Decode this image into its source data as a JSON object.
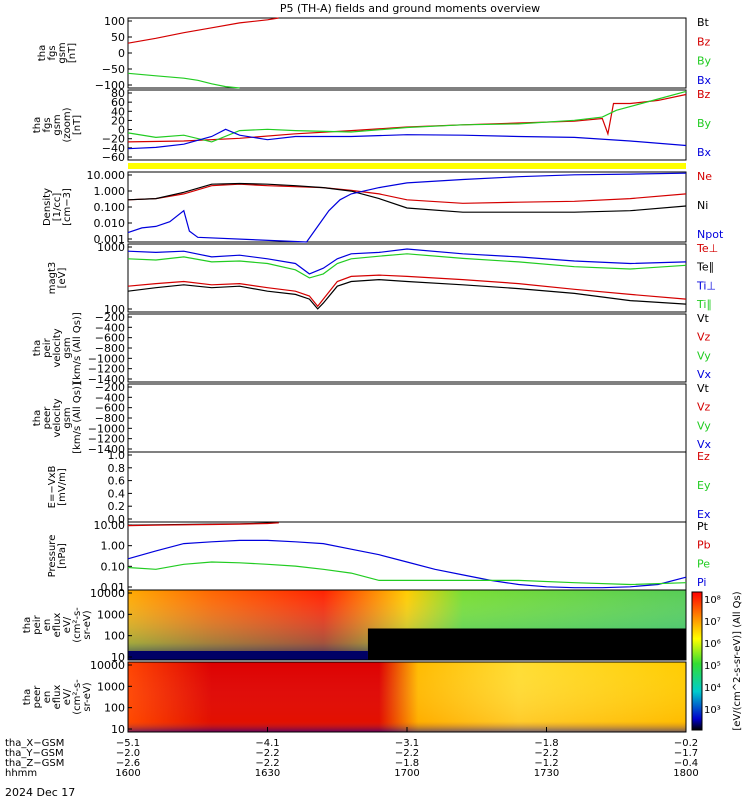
{
  "title": "P5 (TH-A) fields and ground moments overview",
  "date_label": "2024 Dec 17",
  "colors": {
    "black": "#000000",
    "red": "#d40000",
    "green": "#22cc22",
    "blue": "#0000dd",
    "yellow": "#ffff00"
  },
  "chart_data": [
    {
      "type": "line",
      "id": "fgs_gsm",
      "ylabel": [
        "tha",
        "fgs",
        "gsm",
        "[nT]"
      ],
      "ylim": [
        -100,
        100
      ],
      "ticks": [
        "100",
        "50",
        "0",
        "−50",
        "−100"
      ],
      "legend": [
        {
          "label": "Bt",
          "color": "black"
        },
        {
          "label": "Bz",
          "color": "red"
        },
        {
          "label": "By",
          "color": "green"
        },
        {
          "label": "Bx",
          "color": "blue"
        }
      ],
      "series": [
        {
          "name": "Bz",
          "color": "red",
          "x": [
            1600,
            1610,
            1620,
            1630,
            1640,
            1650,
            1654
          ],
          "y": [
            28,
            42,
            58,
            72,
            86,
            95,
            100
          ]
        },
        {
          "name": "By",
          "color": "green",
          "x": [
            1600,
            1610,
            1620,
            1625,
            1630,
            1635,
            1640
          ],
          "y": [
            -58,
            -65,
            -72,
            -78,
            -88,
            -96,
            -100
          ]
        }
      ]
    },
    {
      "type": "line",
      "id": "fgs_gse",
      "ylabel": [
        "tha",
        "fgs",
        "gsm",
        "(zoom)",
        "[nT]"
      ],
      "ylim": [
        -70,
        85
      ],
      "ticks": [
        "80",
        "60",
        "40",
        "20",
        "0",
        "−20",
        "−40",
        "−60"
      ],
      "legend": [
        {
          "label": "Bz",
          "color": "red"
        },
        {
          "label": "By",
          "color": "green"
        },
        {
          "label": "Bx",
          "color": "blue"
        }
      ],
      "series": [
        {
          "name": "Bz",
          "color": "red",
          "x": [
            1600,
            1620,
            1640,
            1660,
            1680,
            1700,
            1720,
            1740,
            1760,
            1770,
            1772,
            1774,
            1780,
            1790,
            1800
          ],
          "y": [
            -30,
            -28,
            -22,
            -12,
            -5,
            3,
            8,
            12,
            16,
            22,
            -12,
            55,
            55,
            62,
            75
          ]
        },
        {
          "name": "By",
          "color": "green",
          "x": [
            1600,
            1610,
            1620,
            1630,
            1640,
            1650,
            1660,
            1680,
            1700,
            1720,
            1740,
            1760,
            1770,
            1775,
            1790,
            1800
          ],
          "y": [
            -10,
            -20,
            -15,
            -30,
            -5,
            -2,
            -5,
            -8,
            2,
            8,
            10,
            18,
            25,
            40,
            65,
            82
          ]
        },
        {
          "name": "Bx",
          "color": "blue",
          "x": [
            1600,
            1610,
            1620,
            1630,
            1635,
            1640,
            1650,
            1660,
            1680,
            1700,
            1720,
            1740,
            1760,
            1780,
            1800
          ],
          "y": [
            -45,
            -42,
            -35,
            -18,
            -2,
            -15,
            -25,
            -18,
            -18,
            -14,
            -15,
            -18,
            -20,
            -28,
            -38
          ]
        }
      ]
    },
    {
      "type": "line",
      "id": "density",
      "ylabel": [
        "Density",
        "[1/cc]",
        "[cm−3]"
      ],
      "yscale": "log",
      "ylim": [
        0.001,
        30
      ],
      "ticks": [
        "10.000",
        "1.000",
        "0.100",
        "0.010",
        "0.001"
      ],
      "legend": [
        {
          "label": "Ne",
          "color": "red"
        },
        {
          "label": "Ni",
          "color": "black"
        },
        {
          "label": "Npot",
          "color": "blue"
        }
      ],
      "series": [
        {
          "name": "Ne",
          "color": "red",
          "x": [
            1600,
            1610,
            1620,
            1630,
            1640,
            1650,
            1660,
            1670,
            1680,
            1690,
            1700,
            1720,
            1740,
            1760,
            1780,
            1800
          ],
          "y": [
            0.5,
            0.6,
            1.2,
            4,
            5,
            4,
            3.5,
            3,
            2,
            1.2,
            0.5,
            0.3,
            0.35,
            0.4,
            0.6,
            1.2
          ]
        },
        {
          "name": "Ni",
          "color": "black",
          "x": [
            1600,
            1610,
            1620,
            1630,
            1640,
            1650,
            1660,
            1670,
            1680,
            1690,
            1700,
            1720,
            1740,
            1760,
            1780,
            1800
          ],
          "y": [
            0.5,
            0.6,
            1.5,
            5,
            5.5,
            5,
            4,
            3,
            1.8,
            0.6,
            0.15,
            0.08,
            0.08,
            0.08,
            0.1,
            0.2
          ]
        },
        {
          "name": "Npot",
          "color": "blue",
          "x": [
            1600,
            1605,
            1610,
            1615,
            1620,
            1622,
            1625,
            1664,
            1668,
            1672,
            1676,
            1680,
            1690,
            1700,
            1720,
            1740,
            1760,
            1780,
            1800
          ],
          "y": [
            0.004,
            0.008,
            0.01,
            0.02,
            0.1,
            0.005,
            0.002,
            0.001,
            0.01,
            0.1,
            0.5,
            1.2,
            3,
            6,
            10,
            15,
            20,
            22,
            25
          ]
        }
      ]
    },
    {
      "type": "line",
      "id": "temperature",
      "ylabel": [
        "magt3",
        "[eV]"
      ],
      "yscale": "log",
      "ylim": [
        80,
        10000
      ],
      "ticks": [
        "1000",
        "100"
      ],
      "legend": [
        {
          "label": "Te⊥",
          "color": "red"
        },
        {
          "label": "Te∥",
          "color": "black"
        },
        {
          "label": "Ti⊥",
          "color": "blue"
        },
        {
          "label": "Ti∥",
          "color": "green"
        }
      ],
      "series": [
        {
          "name": "Ti⊥",
          "color": "blue",
          "x": [
            1600,
            1610,
            1620,
            1630,
            1640,
            1650,
            1660,
            1665,
            1670,
            1675,
            1680,
            1690,
            1700,
            1720,
            1740,
            1760,
            1780,
            1800
          ],
          "y": [
            6000,
            5500,
            6000,
            4000,
            4500,
            3500,
            2500,
            1200,
            1800,
            3500,
            5000,
            5500,
            7000,
            5000,
            4000,
            3000,
            2500,
            2800
          ]
        },
        {
          "name": "Ti∥",
          "color": "green",
          "x": [
            1600,
            1610,
            1620,
            1630,
            1640,
            1650,
            1660,
            1665,
            1670,
            1675,
            1680,
            1690,
            1700,
            1720,
            1740,
            1760,
            1780,
            1800
          ],
          "y": [
            3500,
            3200,
            4000,
            2800,
            3000,
            2500,
            1600,
            900,
            1200,
            2500,
            3500,
            4200,
            5000,
            3600,
            2800,
            2000,
            1700,
            2200
          ]
        },
        {
          "name": "Te⊥",
          "color": "red",
          "x": [
            1600,
            1610,
            1620,
            1630,
            1640,
            1650,
            1660,
            1665,
            1668,
            1670,
            1675,
            1680,
            1690,
            1700,
            1720,
            1740,
            1760,
            1780,
            1800
          ],
          "y": [
            500,
            600,
            700,
            550,
            600,
            450,
            350,
            250,
            120,
            200,
            700,
            1000,
            1100,
            1000,
            800,
            600,
            400,
            280,
            200
          ]
        },
        {
          "name": "Te∥",
          "color": "black",
          "x": [
            1600,
            1610,
            1620,
            1630,
            1640,
            1650,
            1660,
            1665,
            1668,
            1670,
            1675,
            1680,
            1690,
            1700,
            1720,
            1740,
            1760,
            1780,
            1800
          ],
          "y": [
            350,
            450,
            550,
            450,
            500,
            350,
            280,
            200,
            100,
            150,
            500,
            700,
            800,
            700,
            550,
            420,
            300,
            180,
            140
          ]
        }
      ]
    },
    {
      "type": "line",
      "id": "peir_velocity",
      "ylabel": [
        "tha",
        "peir",
        "velocity",
        "gsm",
        "[km/s (All Qs)]"
      ],
      "ylim": [
        -1500,
        0
      ],
      "ticks": [
        "−200",
        "−400",
        "−600",
        "−800",
        "−1000",
        "−1200",
        "−1400"
      ],
      "legend": [
        {
          "label": "Vt",
          "color": "black"
        },
        {
          "label": "Vz",
          "color": "red"
        },
        {
          "label": "Vy",
          "color": "green"
        },
        {
          "label": "Vx",
          "color": "blue"
        }
      ],
      "series": []
    },
    {
      "type": "line",
      "id": "peer_velocity",
      "ylabel": [
        "tha",
        "peer",
        "velocity",
        "gsm",
        "[km/s (All Qs)]"
      ],
      "ylim": [
        -1500,
        0
      ],
      "ticks": [
        "−200",
        "−400",
        "−600",
        "−800",
        "−1000",
        "−1200",
        "−1400"
      ],
      "legend": [
        {
          "label": "Vt",
          "color": "black"
        },
        {
          "label": "Vz",
          "color": "red"
        },
        {
          "label": "Vy",
          "color": "green"
        },
        {
          "label": "Vx",
          "color": "blue"
        }
      ],
      "series": []
    },
    {
      "type": "line",
      "id": "efield",
      "ylabel": [
        "E=−VxB",
        "[mV/m]"
      ],
      "ylim": [
        0,
        1.0
      ],
      "ticks": [
        "1.0",
        "0.8",
        "0.6",
        "0.4",
        "0.2",
        "0.0"
      ],
      "legend": [
        {
          "label": "Ez",
          "color": "red"
        },
        {
          "label": "Ey",
          "color": "green"
        },
        {
          "label": "Ex",
          "color": "blue"
        }
      ],
      "series": []
    },
    {
      "type": "line",
      "id": "pressure",
      "ylabel": [
        "Pressure",
        "[nPa]"
      ],
      "yscale": "log",
      "ylim": [
        0.006,
        30
      ],
      "ticks": [
        "10.00",
        "1.00",
        "0.10",
        "0.01"
      ],
      "legend": [
        {
          "label": "Pt",
          "color": "black"
        },
        {
          "label": "Pb",
          "color": "red"
        },
        {
          "label": "Pe",
          "color": "green"
        },
        {
          "label": "Pi",
          "color": "blue"
        }
      ],
      "series": [
        {
          "name": "Pt",
          "color": "black",
          "x": [
            1600,
            1610,
            1620,
            1630,
            1640,
            1650,
            1654
          ],
          "y": [
            20,
            21,
            22,
            23,
            24,
            26,
            28
          ]
        },
        {
          "name": "Pb",
          "color": "red",
          "x": [
            1600,
            1610,
            1620,
            1630,
            1640,
            1650,
            1654
          ],
          "y": [
            19,
            20,
            21,
            22,
            23,
            25,
            27
          ]
        },
        {
          "name": "Pi",
          "color": "blue",
          "x": [
            1600,
            1610,
            1620,
            1630,
            1640,
            1650,
            1660,
            1670,
            1680,
            1690,
            1700,
            1710,
            1720,
            1730,
            1740,
            1750,
            1760,
            1770,
            1780,
            1790,
            1800
          ],
          "y": [
            0.3,
            0.8,
            2,
            2.5,
            3,
            3,
            2.5,
            2,
            1,
            0.5,
            0.2,
            0.08,
            0.04,
            0.02,
            0.012,
            0.009,
            0.008,
            0.008,
            0.009,
            0.012,
            0.03
          ]
        },
        {
          "name": "Pe",
          "color": "green",
          "x": [
            1600,
            1610,
            1620,
            1630,
            1640,
            1650,
            1660,
            1670,
            1680,
            1690,
            1700,
            1720,
            1740,
            1760,
            1780,
            1800
          ],
          "y": [
            0.1,
            0.08,
            0.15,
            0.2,
            0.18,
            0.15,
            0.12,
            0.08,
            0.05,
            0.02,
            0.02,
            0.02,
            0.02,
            0.015,
            0.012,
            0.015
          ]
        }
      ]
    },
    {
      "type": "heatmap",
      "id": "peir_eflux",
      "ylabel": [
        "tha",
        "peir",
        "en",
        "eflux",
        "eV/",
        "(cm²-s-",
        "sr-eV)"
      ],
      "yscale": "log",
      "ylim": [
        5,
        20000
      ],
      "ticks": [
        "10000",
        "1000",
        "100",
        "10"
      ]
    },
    {
      "type": "heatmap",
      "id": "peer_eflux",
      "ylabel": [
        "tha",
        "peer",
        "en",
        "eflux",
        "eV/",
        "(cm²-s-",
        "sr-eV)"
      ],
      "yscale": "log",
      "ylim": [
        5,
        20000
      ],
      "ticks": [
        "10000",
        "1000",
        "100",
        "10"
      ]
    }
  ],
  "colorbar": {
    "label": "[eV/(cm^2-s-sr-eV)] (All Qs)",
    "ticks": [
      "10⁸",
      "10⁷",
      "10⁶",
      "10⁵",
      "10⁴",
      "10³"
    ]
  },
  "xaxis": {
    "rows": [
      {
        "label": "tha_X−GSM",
        "values": [
          "−5.1",
          "−4.1",
          "−3.1",
          "−1.8",
          "−0.2"
        ]
      },
      {
        "label": "tha_Y−GSM",
        "values": [
          "−2.0",
          "−2.2",
          "−2.2",
          "−2.2",
          "−1.7"
        ]
      },
      {
        "label": "tha_Z−GSM",
        "values": [
          "−2.6",
          "−2.2",
          "−1.8",
          "−1.2",
          "−0.4"
        ]
      },
      {
        "label": "hhmm",
        "values": [
          "1600",
          "1630",
          "1700",
          "1730",
          "1800"
        ]
      }
    ]
  }
}
